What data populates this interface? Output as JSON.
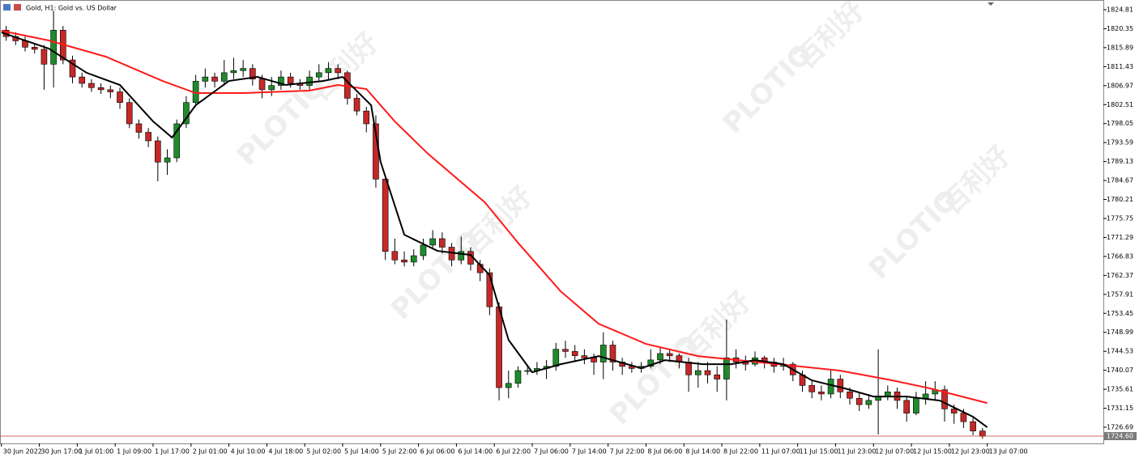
{
  "chart_data": {
    "type": "candlestick",
    "title": "Gold, H1:  Gold vs. US Dollar",
    "up_color": "#1f8b2a",
    "down_color": "#c62828",
    "xlim": [
      -0.3,
      232.5
    ],
    "ylim": [
      1722.89,
      1827.09
    ],
    "x": [
      1,
      3,
      5,
      7,
      9,
      11,
      13,
      15,
      17,
      19,
      21,
      23,
      25,
      27,
      29,
      31,
      33,
      35,
      37,
      39,
      41,
      43,
      45,
      47,
      49,
      51,
      53,
      55,
      57,
      59,
      61,
      63,
      65,
      67,
      69,
      71,
      73,
      75,
      77,
      79,
      81,
      83,
      85,
      87,
      89,
      91,
      93,
      95,
      97,
      99,
      101,
      103,
      105,
      107,
      109,
      111,
      113,
      115,
      117,
      119,
      121,
      123,
      125,
      127,
      129,
      131,
      133,
      135,
      137,
      139,
      141,
      143,
      145,
      147,
      149,
      151,
      153,
      155,
      157,
      159,
      161,
      163,
      165,
      167,
      169,
      171,
      173,
      175,
      177,
      179,
      181,
      183,
      185,
      187,
      189,
      191,
      193,
      195,
      197,
      199,
      201,
      203,
      205,
      207
    ],
    "open": [
      1820,
      1818.5,
      1817.5,
      1816,
      1815.5,
      1812,
      1820,
      1813,
      1809,
      1807.5,
      1806.5,
      1806,
      1805.5,
      1803,
      1798,
      1796,
      1794,
      1789,
      1790,
      1798,
      1803,
      1808,
      1809,
      1808,
      1810,
      1810.5,
      1811,
      1808.5,
      1806,
      1807,
      1809,
      1807.5,
      1807,
      1809,
      1810,
      1811,
      1810,
      1804,
      1801,
      1798,
      1785,
      1768,
      1766,
      1765.5,
      1767,
      1769.5,
      1771,
      1769,
      1766,
      1768,
      1765,
      1763,
      1755,
      1736,
      1737,
      1740,
      1740,
      1740.5,
      1741,
      1745,
      1744.5,
      1743.5,
      1743,
      1742,
      1746,
      1742,
      1741,
      1740.5,
      1741,
      1742.5,
      1744,
      1743.5,
      1742,
      1739,
      1740,
      1739,
      1738,
      1743,
      1742,
      1741.5,
      1743,
      1742,
      1741,
      1741.5,
      1739,
      1736.5,
      1735,
      1734.5,
      1738,
      1735,
      1733.5,
      1732,
      1733,
      1734,
      1735,
      1733,
      1730,
      1733.5,
      1734.5,
      1735.5,
      1731,
      1730,
      1728,
      1725.8
    ],
    "high": [
      1821,
      1819.5,
      1818.5,
      1817,
      1816.5,
      1824.5,
      1821,
      1814,
      1810,
      1808.5,
      1807.5,
      1807,
      1806.5,
      1804,
      1799,
      1797,
      1795,
      1792,
      1799,
      1804.5,
      1809.5,
      1811,
      1810,
      1813,
      1813.5,
      1813,
      1812,
      1809.5,
      1809,
      1810.5,
      1810,
      1808.5,
      1810.5,
      1812,
      1812.5,
      1812,
      1810.5,
      1805,
      1802,
      1800,
      1786,
      1771,
      1768,
      1768.5,
      1771,
      1773,
      1772.5,
      1770,
      1771.5,
      1769,
      1766,
      1764,
      1756,
      1740,
      1741,
      1741,
      1742,
      1742.5,
      1746.5,
      1747,
      1746,
      1745,
      1744,
      1749,
      1747,
      1743,
      1742,
      1742,
      1745,
      1745.5,
      1745,
      1744,
      1743,
      1742,
      1742,
      1741,
      1752,
      1745,
      1743.5,
      1744.5,
      1743.5,
      1743,
      1743,
      1742,
      1740,
      1737.5,
      1736.5,
      1740,
      1739,
      1736,
      1735,
      1734.5,
      1745,
      1736.5,
      1736,
      1734,
      1735,
      1737.5,
      1737.5,
      1736.5,
      1732,
      1731,
      1729,
      1726.5
    ],
    "low": [
      1817.5,
      1816.5,
      1815,
      1814.5,
      1806,
      1806.5,
      1812,
      1807.5,
      1806.5,
      1805.5,
      1805,
      1804,
      1801.5,
      1797,
      1794.5,
      1792.5,
      1784.5,
      1786,
      1789,
      1797,
      1802,
      1806.5,
      1806.5,
      1807,
      1808.5,
      1809,
      1807,
      1804,
      1804.5,
      1806,
      1806.5,
      1806,
      1806,
      1808,
      1808.5,
      1808.5,
      1802.5,
      1800,
      1796,
      1783,
      1766,
      1765,
      1764.5,
      1764.5,
      1766,
      1768.5,
      1767.5,
      1764.5,
      1765,
      1763.5,
      1761,
      1753,
      1733,
      1733.5,
      1736,
      1739,
      1739,
      1738,
      1740,
      1743,
      1742,
      1741.5,
      1739,
      1738,
      1740,
      1739,
      1739.5,
      1739.5,
      1740.5,
      1741.5,
      1742,
      1740.5,
      1735,
      1736,
      1737,
      1735,
      1733,
      1740.5,
      1740,
      1741,
      1740.5,
      1739.5,
      1740,
      1737.5,
      1735,
      1733.5,
      1733,
      1733.5,
      1733.5,
      1732,
      1730.5,
      1731,
      1725,
      1733,
      1731,
      1728,
      1729.5,
      1732,
      1733,
      1728,
      1727.5,
      1726.5,
      1724.8,
      1724
    ],
    "close": [
      1818.5,
      1817.5,
      1816,
      1815.5,
      1812,
      1820,
      1813,
      1809,
      1807.5,
      1806.5,
      1806,
      1805.5,
      1803,
      1798,
      1796,
      1794,
      1789,
      1790,
      1798,
      1803,
      1808,
      1809,
      1808,
      1810,
      1810.5,
      1811,
      1808.5,
      1806,
      1807,
      1809,
      1807.5,
      1807,
      1809,
      1810,
      1811,
      1810,
      1804,
      1801,
      1798,
      1785,
      1768,
      1766,
      1765.5,
      1767,
      1769.5,
      1771,
      1769,
      1766,
      1768,
      1765,
      1763,
      1755,
      1736,
      1737,
      1740,
      1740,
      1740.5,
      1741,
      1745,
      1744.5,
      1743.5,
      1743,
      1742,
      1746,
      1742,
      1741,
      1740.5,
      1741,
      1742.5,
      1744,
      1743.5,
      1742,
      1739,
      1740,
      1739,
      1738,
      1743,
      1742,
      1741.5,
      1743,
      1742,
      1741,
      1741.5,
      1739,
      1736.5,
      1735,
      1734.5,
      1738,
      1735,
      1733.5,
      1732,
      1733,
      1734,
      1735,
      1733,
      1730,
      1733.5,
      1734.5,
      1735.5,
      1731,
      1730,
      1728,
      1725.8,
      1724.6
    ],
    "lines": [
      {
        "color": "#ff1a1a",
        "x": [
          0,
          10,
          22,
          34,
          41,
          51,
          65,
          71,
          77,
          83,
          90,
          102,
          109,
          118,
          126,
          136,
          147,
          164,
          177,
          188,
          196,
          208
        ],
        "values": [
          1819.86,
          1817.58,
          1813.78,
          1808.07,
          1805.22,
          1805.22,
          1805.79,
          1807.12,
          1806.17,
          1798.56,
          1790.95,
          1779.54,
          1770.03,
          1758.62,
          1751.01,
          1746.26,
          1743.4,
          1741.5,
          1739.98,
          1737.7,
          1735.8,
          1732.37
        ]
      },
      {
        "color": "#000000",
        "x": [
          0,
          10,
          18,
          25,
          32,
          36,
          41,
          48,
          54,
          60,
          68,
          72,
          78,
          80,
          85,
          92,
          99,
          103,
          107,
          112,
          118,
          126,
          135,
          140,
          148,
          154,
          159,
          165,
          171,
          178,
          184,
          191,
          198,
          205,
          208
        ],
        "values": [
          1819.48,
          1815.68,
          1809.97,
          1807.12,
          1798.56,
          1794.76,
          1802.37,
          1808.07,
          1809.02,
          1807.12,
          1808.07,
          1809.02,
          1802.37,
          1789.05,
          1771.93,
          1768.13,
          1767.18,
          1762.43,
          1747.21,
          1739.6,
          1741.5,
          1743.4,
          1740.55,
          1742.45,
          1741.5,
          1741.5,
          1742.45,
          1741.5,
          1737.7,
          1735.8,
          1733.9,
          1733.9,
          1732.95,
          1729.15,
          1726.68
        ]
      }
    ],
    "last_price": {
      "value": 1724.6,
      "label": "1724.60"
    },
    "yticks": [
      1726.69,
      1731.15,
      1735.61,
      1740.07,
      1744.53,
      1748.99,
      1753.45,
      1757.91,
      1762.37,
      1766.83,
      1771.29,
      1775.75,
      1780.21,
      1784.67,
      1789.13,
      1793.59,
      1798.05,
      1802.51,
      1806.97,
      1811.43,
      1815.89,
      1820.35,
      1824.81
    ],
    "xticks": [
      {
        "value": 0,
        "label": "30 Jun 2022"
      },
      {
        "value": 8,
        "label": "30 Jun 17:00"
      },
      {
        "value": 16,
        "label": "1 Jul 01:00"
      },
      {
        "value": 24,
        "label": "1 Jul 09:00"
      },
      {
        "value": 32,
        "label": "1 Jul 17:00"
      },
      {
        "value": 40,
        "label": "2 Jul 01:00"
      },
      {
        "value": 48,
        "label": "4 Jul 10:00"
      },
      {
        "value": 56,
        "label": "4 Jul 18:00"
      },
      {
        "value": 64,
        "label": "5 Jul 02:00"
      },
      {
        "value": 72,
        "label": "5 Jul 14:00"
      },
      {
        "value": 80,
        "label": "5 Jul 22:00"
      },
      {
        "value": 88,
        "label": "6 Jul 06:00"
      },
      {
        "value": 96,
        "label": "6 Jul 14:00"
      },
      {
        "value": 104,
        "label": "6 Jul 22:00"
      },
      {
        "value": 112,
        "label": "7 Jul 06:00"
      },
      {
        "value": 120,
        "label": "7 Jul 14:00"
      },
      {
        "value": 128,
        "label": "7 Jul 22:00"
      },
      {
        "value": 136,
        "label": "8 Jul 06:00"
      },
      {
        "value": 144,
        "label": "8 Jul 14:00"
      },
      {
        "value": 152,
        "label": "8 Jul 22:00"
      },
      {
        "value": 160,
        "label": "11 Jul 07:00"
      },
      {
        "value": 168,
        "label": "11 Jul 15:00"
      },
      {
        "value": 176,
        "label": "11 Jul 23:00"
      },
      {
        "value": 184,
        "label": "12 Jul 07:00"
      },
      {
        "value": 192,
        "label": "12 Jul 15:00"
      },
      {
        "value": 200,
        "label": "12 Jul 23:00"
      },
      {
        "value": 208,
        "label": "13 Jul 07:00"
      }
    ]
  },
  "watermark": [
    "PLOTIO",
    "百利好"
  ]
}
